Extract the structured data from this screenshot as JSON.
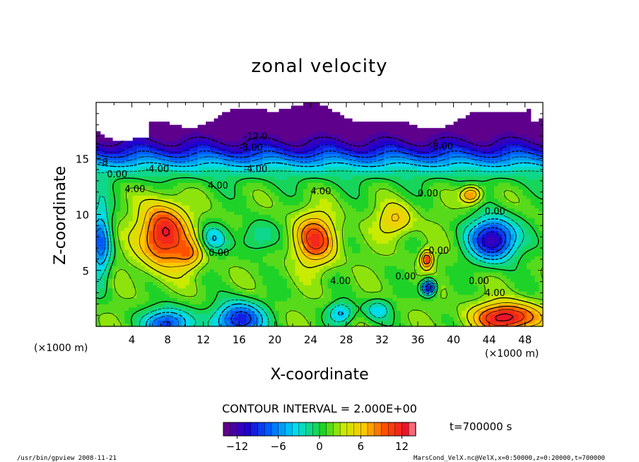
{
  "footer": {
    "left": "/usr/bin/gpview  2008-11-21",
    "right": "MarsCond_VelX.nc@VelX,x=0:50000,z=0:20000,t=700000"
  },
  "time_label": "t=700000 s",
  "contour_interval_label": "CONTOUR INTERVAL = 2.000E+00",
  "chart_data": {
    "type": "heatmap",
    "title": "zonal velocity",
    "xlabel": "X-coordinate",
    "ylabel": "Z-coordinate",
    "x_unit_label": "(×1000 m)",
    "z_unit_label": "(×1000 m)",
    "xlim": [
      0,
      50
    ],
    "ylim": [
      0,
      20
    ],
    "x_ticks": [
      4,
      8,
      12,
      16,
      20,
      24,
      28,
      32,
      36,
      40,
      44,
      48
    ],
    "y_ticks": [
      5,
      10,
      15
    ],
    "colorbar": {
      "range": [
        -14,
        14
      ],
      "ticks": [
        -12,
        -6,
        0,
        6,
        12
      ],
      "colormap": "rainbow (purple - blue - cyan - green - yellow - red - pink)"
    },
    "contour_labels": [
      {
        "x": 16.5,
        "z": 16.7,
        "text": "-12.0"
      },
      {
        "x": 16.0,
        "z": 15.7,
        "text": "-8.00"
      },
      {
        "x": 37.3,
        "z": 15.8,
        "text": "-8.00"
      },
      {
        "x": 0.3,
        "z": 14.4,
        "text": "-8"
      },
      {
        "x": 5.5,
        "z": 13.8,
        "text": "-4.00"
      },
      {
        "x": 16.5,
        "z": 13.8,
        "text": "-4.00"
      },
      {
        "x": 1.2,
        "z": 13.3,
        "text": "0.00"
      },
      {
        "x": 12.5,
        "z": 12.3,
        "text": "4.00"
      },
      {
        "x": 24.0,
        "z": 11.8,
        "text": "4.00"
      },
      {
        "x": 36.0,
        "z": 11.6,
        "text": "0.00"
      },
      {
        "x": 3.2,
        "z": 12.0,
        "text": "4.00"
      },
      {
        "x": 43.5,
        "z": 10.0,
        "text": "0.00"
      },
      {
        "x": 12.6,
        "z": 6.3,
        "text": "0.00"
      },
      {
        "x": 37.2,
        "z": 6.5,
        "text": "0.00"
      },
      {
        "x": 26.2,
        "z": 3.8,
        "text": "4.00"
      },
      {
        "x": 33.5,
        "z": 4.2,
        "text": "0.00"
      },
      {
        "x": 41.7,
        "z": 3.8,
        "text": "0.00"
      },
      {
        "x": 43.5,
        "z": 2.7,
        "text": "4.00"
      }
    ],
    "features": [
      {
        "x": 7.5,
        "z": 8.2,
        "value": 13,
        "kind": "max"
      },
      {
        "x": 24.5,
        "z": 7.8,
        "value": 10,
        "kind": "max"
      },
      {
        "x": 37.0,
        "z": 6.0,
        "value": 10,
        "kind": "max"
      },
      {
        "x": 42.0,
        "z": 11.8,
        "value": 8,
        "kind": "max"
      },
      {
        "x": 44.5,
        "z": 7.8,
        "value": -12,
        "kind": "min"
      },
      {
        "x": 16.0,
        "z": 1.0,
        "value": -11,
        "kind": "min"
      },
      {
        "x": 46.0,
        "z": 0.8,
        "value": 12,
        "kind": "max"
      },
      {
        "x": 37.2,
        "z": 3.5,
        "value": -12,
        "kind": "min"
      },
      {
        "x": 8.0,
        "z": 0.3,
        "value": -10,
        "kind": "min"
      }
    ]
  }
}
